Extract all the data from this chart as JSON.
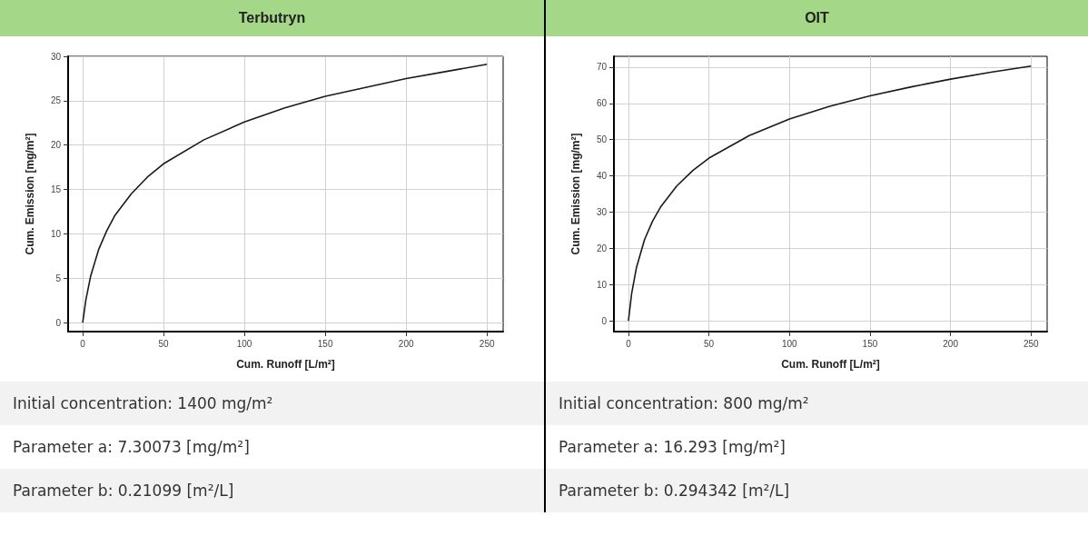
{
  "chart_data": [
    {
      "type": "line",
      "title": "Terbutryn",
      "xlabel": "Cum. Runoff [L/m²]",
      "ylabel": "Cum. Emission [mg/m²]",
      "x": [
        0,
        2,
        5,
        10,
        15,
        20,
        30,
        40,
        50,
        75,
        100,
        125,
        150,
        175,
        200,
        225,
        250
      ],
      "values": [
        0,
        2.6,
        5.3,
        8.3,
        10.4,
        12.1,
        14.5,
        16.4,
        17.9,
        20.6,
        22.6,
        24.2,
        25.5,
        26.5,
        27.5,
        28.3,
        29.1
      ],
      "color": "#1a1a1a",
      "xlim": [
        -9,
        260
      ],
      "xticks": [
        0,
        50,
        100,
        150,
        200,
        250
      ],
      "ylim": [
        -1,
        30
      ],
      "yticks": [
        0,
        5,
        10,
        15,
        20,
        25,
        30
      ],
      "grid": true,
      "marker": "none",
      "annotations": [
        "Initial concentration: 1400 mg/m²",
        "Parameter a: 7.30073 [mg/m²]",
        "Parameter b: 0.21099 [m²/L]"
      ]
    },
    {
      "type": "line",
      "title": "OIT",
      "xlabel": "Cum. Runoff [L/m²]",
      "ylabel": "Cum. Emission [mg/m²]",
      "x": [
        0,
        2,
        5,
        10,
        15,
        20,
        30,
        40,
        50,
        75,
        100,
        125,
        150,
        175,
        200,
        225,
        250
      ],
      "values": [
        0,
        7.5,
        14.7,
        22.4,
        27.5,
        31.4,
        37.2,
        41.5,
        44.9,
        51.1,
        55.7,
        59.2,
        62.1,
        64.5,
        66.7,
        68.6,
        70.3
      ],
      "color": "#1a1a1a",
      "xlim": [
        -9,
        260
      ],
      "xticks": [
        0,
        50,
        100,
        150,
        200,
        250
      ],
      "ylim": [
        -3,
        73
      ],
      "yticks": [
        0,
        10,
        20,
        30,
        40,
        50,
        60,
        70
      ],
      "grid": true,
      "marker": "none",
      "annotations": [
        "Initial concentration: 800 mg/m²",
        "Parameter a: 16.293 [mg/m²]",
        "Parameter b: 0.294342 [m²/L]"
      ]
    }
  ]
}
